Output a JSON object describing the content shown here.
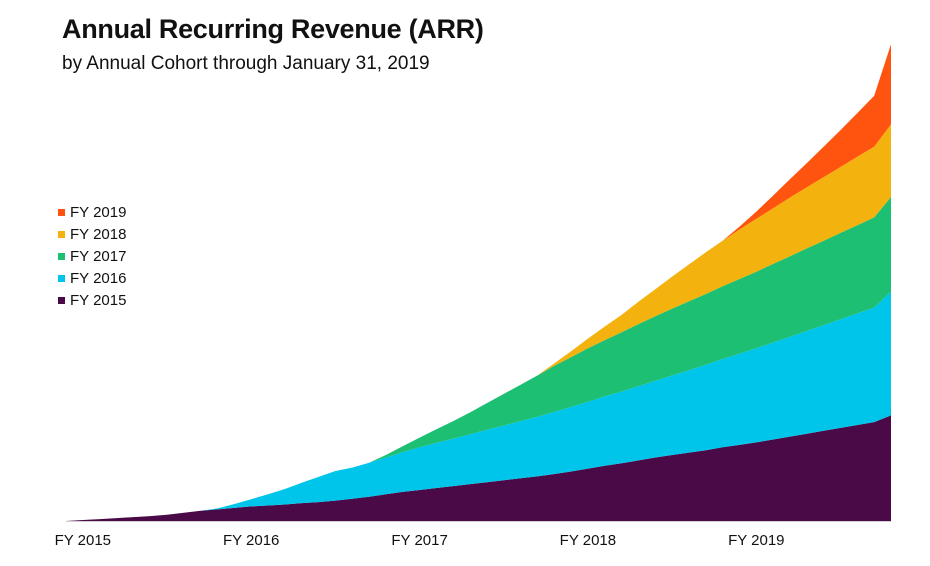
{
  "title": "Annual Recurring Revenue (ARR)",
  "subtitle": "by Annual Cohort through January 31, 2019",
  "chart_data": {
    "type": "area",
    "stacked": true,
    "title": "Annual Recurring Revenue (ARR)",
    "subtitle": "by Annual Cohort through January 31, 2019",
    "xlabel": "",
    "ylabel": "",
    "x_tick_labels": [
      "FY 2015",
      "FY 2016",
      "FY 2017",
      "FY 2018",
      "FY 2019"
    ],
    "x_tick_positions": [
      1,
      11,
      21,
      31,
      41
    ],
    "x_range": [
      0,
      49
    ],
    "y_range": [
      0,
      100
    ],
    "grid": false,
    "legend_position": "left",
    "series": [
      {
        "name": "FY 2015",
        "color": "#4a0a47",
        "values": [
          0.0,
          0.2,
          0.4,
          0.6,
          0.8,
          1.0,
          1.3,
          1.7,
          2.1,
          2.4,
          2.7,
          3.0,
          3.2,
          3.4,
          3.7,
          3.9,
          4.2,
          4.6,
          5.0,
          5.5,
          6.0,
          6.4,
          6.8,
          7.2,
          7.6,
          8.0,
          8.4,
          8.8,
          9.2,
          9.7,
          10.2,
          10.8,
          11.4,
          11.9,
          12.5,
          13.1,
          13.6,
          14.1,
          14.6,
          15.2,
          15.7,
          16.2,
          16.8,
          17.4,
          18.0,
          18.6,
          19.2,
          19.8,
          20.4,
          21.8
        ]
      },
      {
        "name": "FY 2016",
        "color": "#00c5ea",
        "values": [
          0,
          0,
          0,
          0,
          0,
          0,
          0,
          0,
          0,
          0.2,
          0.8,
          1.5,
          2.3,
          3.2,
          4.2,
          5.2,
          6.1,
          6.4,
          7.0,
          7.6,
          8.2,
          8.8,
          9.3,
          9.8,
          10.3,
          10.8,
          11.3,
          11.8,
          12.3,
          12.8,
          13.3,
          13.8,
          14.3,
          14.8,
          15.3,
          15.8,
          16.4,
          17.0,
          17.6,
          18.2,
          18.8,
          19.4,
          20.0,
          20.6,
          21.2,
          21.8,
          22.4,
          23.0,
          23.6,
          25.5
        ]
      },
      {
        "name": "FY 2017",
        "color": "#1dbf73",
        "values": [
          0,
          0,
          0,
          0,
          0,
          0,
          0,
          0,
          0,
          0,
          0,
          0,
          0,
          0,
          0,
          0,
          0,
          0,
          0,
          0.5,
          1.2,
          2.0,
          2.8,
          3.6,
          4.5,
          5.5,
          6.5,
          7.5,
          8.5,
          9.5,
          10.3,
          11.0,
          11.6,
          12.2,
          12.8,
          13.3,
          13.8,
          14.2,
          14.6,
          15.0,
          15.4,
          15.8,
          16.2,
          16.6,
          17.0,
          17.4,
          17.8,
          18.2,
          18.6,
          19.5
        ]
      },
      {
        "name": "FY 2018",
        "color": "#f3b20e",
        "values": [
          0,
          0,
          0,
          0,
          0,
          0,
          0,
          0,
          0,
          0,
          0,
          0,
          0,
          0,
          0,
          0,
          0,
          0,
          0,
          0,
          0,
          0,
          0,
          0,
          0,
          0,
          0,
          0,
          0,
          0.5,
          1.2,
          2.0,
          2.8,
          3.6,
          4.6,
          5.6,
          6.6,
          7.6,
          8.6,
          9.4,
          10.2,
          10.9,
          11.5,
          12.1,
          12.6,
          13.1,
          13.6,
          14.1,
          14.6,
          15.0
        ]
      },
      {
        "name": "FY 2019",
        "color": "#ff5410",
        "values": [
          0,
          0,
          0,
          0,
          0,
          0,
          0,
          0,
          0,
          0,
          0,
          0,
          0,
          0,
          0,
          0,
          0,
          0,
          0,
          0,
          0,
          0,
          0,
          0,
          0,
          0,
          0,
          0,
          0,
          0,
          0,
          0,
          0,
          0,
          0,
          0,
          0,
          0,
          0,
          0,
          0.6,
          1.5,
          2.6,
          3.8,
          5.0,
          6.3,
          7.6,
          9.0,
          10.5,
          16.5
        ]
      }
    ]
  }
}
